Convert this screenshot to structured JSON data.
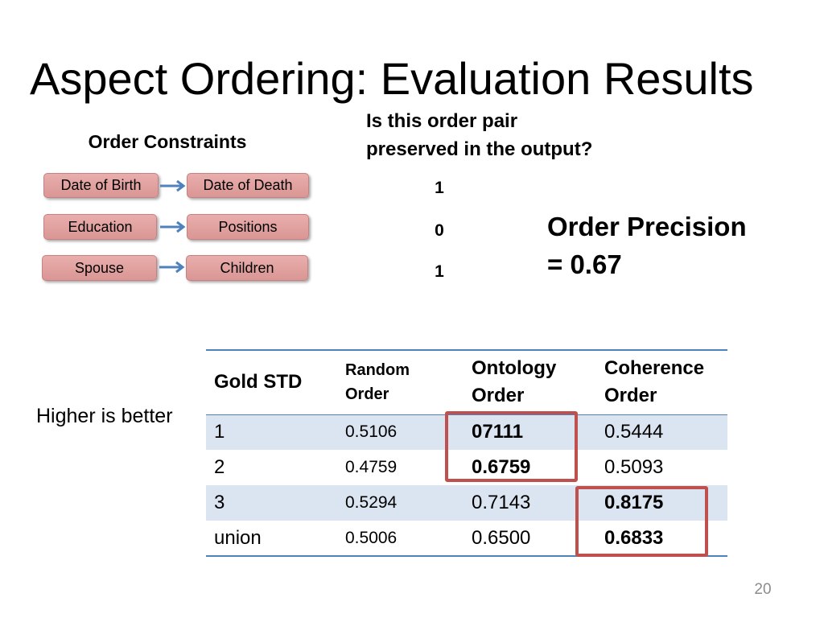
{
  "slide": {
    "title": "Aspect Ordering: Evaluation Results",
    "page_number": "20"
  },
  "constraints": {
    "heading": "Order Constraints",
    "pairs": [
      {
        "from": "Date of Birth",
        "to": "Date of Death",
        "preserved": "1"
      },
      {
        "from": "Education",
        "to": "Positions",
        "preserved": "0"
      },
      {
        "from": "Spouse",
        "to": "Children",
        "preserved": "1"
      }
    ]
  },
  "question": {
    "line1": "Is this order pair",
    "line2": "preserved in the output?"
  },
  "precision": {
    "label": "Order Precision",
    "value": "= 0.67"
  },
  "note": "Higher is better",
  "results_table": {
    "headers": [
      [
        "Gold STD"
      ],
      [
        "Random",
        "Order"
      ],
      [
        "Ontology",
        "Order"
      ],
      [
        "Coherence",
        "Order"
      ]
    ],
    "rows": [
      [
        "1",
        "0.5106",
        "07111",
        "0.5444"
      ],
      [
        "2",
        "0.4759",
        "0.6759",
        "0.5093"
      ],
      [
        "3",
        "0.5294",
        "0.7143",
        "0.8175"
      ],
      [
        "union",
        "0.5006",
        "0.6500",
        "0.6833"
      ]
    ]
  },
  "theme": {
    "accent": "#4f81bd",
    "highlight": "#c0504d",
    "band": "#dbe5f1",
    "box_fill": "#d99694",
    "page_number": "#8c8c8c"
  }
}
